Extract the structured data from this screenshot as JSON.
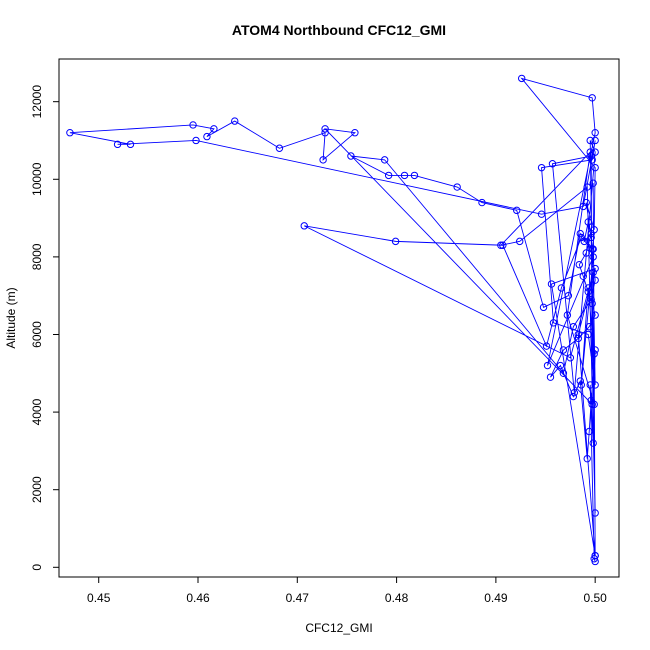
{
  "chart_data": {
    "type": "line",
    "title": "ATOM4 Northbound CFC12_GMI",
    "xlabel": "CFC12_GMI",
    "ylabel": "Altitude (m)",
    "xlim": [
      0.446,
      0.5024
    ],
    "ylim": [
      -250,
      13100
    ],
    "xticks": [
      0.45,
      0.46,
      0.47,
      0.48,
      0.49,
      0.5
    ],
    "xtick_labels": [
      "0.45",
      "0.46",
      "0.47",
      "0.48",
      "0.49",
      "0.50"
    ],
    "yticks": [
      0,
      2000,
      4000,
      6000,
      8000,
      10000,
      12000
    ],
    "ytick_labels": [
      "0",
      "2000",
      "4000",
      "6000",
      "8000",
      "10000",
      "12000"
    ],
    "grid": false,
    "legend": "none",
    "series": [
      {
        "color": "#0000ff",
        "marker": "open-circle",
        "x": [
          0.5,
          0.4999,
          0.4995,
          0.4998,
          0.5,
          0.4996,
          0.4994,
          0.4992,
          0.4985,
          0.4978,
          0.4965,
          0.4955,
          0.4968,
          0.4983,
          0.4994,
          0.5,
          0.4997,
          0.4993,
          0.4988,
          0.4984,
          0.4991,
          0.4996,
          0.4989,
          0.4993,
          0.4998,
          0.4985,
          0.4973,
          0.4948,
          0.4921,
          0.4886,
          0.4861,
          0.4818,
          0.4808,
          0.4792,
          0.4754,
          0.4788,
          0.4968,
          0.4978,
          0.4996,
          0.5,
          0.4997,
          0.4986,
          0.4966,
          0.4951,
          0.4907,
          0.4799,
          0.4707,
          0.4975,
          0.4998,
          0.5,
          0.4993,
          0.4958,
          0.4946,
          0.4997,
          0.5,
          0.4988,
          0.4946,
          0.4598,
          0.4519,
          0.4532,
          0.4471,
          0.4595,
          0.4616,
          0.4609,
          0.4637,
          0.4682,
          0.4728,
          0.4726,
          0.4758,
          0.4728,
          0.4997,
          0.4996,
          0.4957,
          0.4979,
          0.5,
          0.4995,
          0.4999,
          0.4972,
          0.4995,
          0.4905,
          0.4924,
          0.4992,
          0.5,
          0.4996,
          0.4991,
          0.4999,
          0.5,
          0.4926,
          0.4997,
          0.5,
          0.4952,
          0.4998,
          0.4986,
          0.4993,
          0.4999,
          0.4998,
          0.5,
          0.4983,
          0.5,
          0.4956,
          0.5
        ],
        "y": [
          150,
          220,
          4700,
          3200,
          5600,
          4300,
          3500,
          2800,
          4800,
          4400,
          5200,
          4900,
          5600,
          5900,
          6200,
          6500,
          6800,
          7100,
          7500,
          7800,
          8100,
          8600,
          8400,
          8900,
          8200,
          8600,
          7000,
          6700,
          9200,
          9400,
          9800,
          10100,
          10100,
          10100,
          10600,
          10500,
          5000,
          6200,
          6900,
          7400,
          8200,
          8500,
          7200,
          5700,
          8300,
          8400,
          8800,
          5400,
          7600,
          4700,
          6000,
          6300,
          10300,
          10500,
          11000,
          9300,
          9100,
          11000,
          10900,
          10900,
          11200,
          11400,
          11300,
          11100,
          11500,
          10800,
          11200,
          10500,
          11200,
          11300,
          4200,
          10600,
          10400,
          4500,
          10700,
          11000,
          4200,
          6500,
          10700,
          8300,
          8400,
          9800,
          1400,
          8500,
          9400,
          8700,
          10300,
          12600,
          12100,
          11200,
          5200,
          8000,
          4700,
          7200,
          5500,
          9900,
          300,
          6000,
          7700,
          7300,
          300
        ]
      }
    ]
  }
}
